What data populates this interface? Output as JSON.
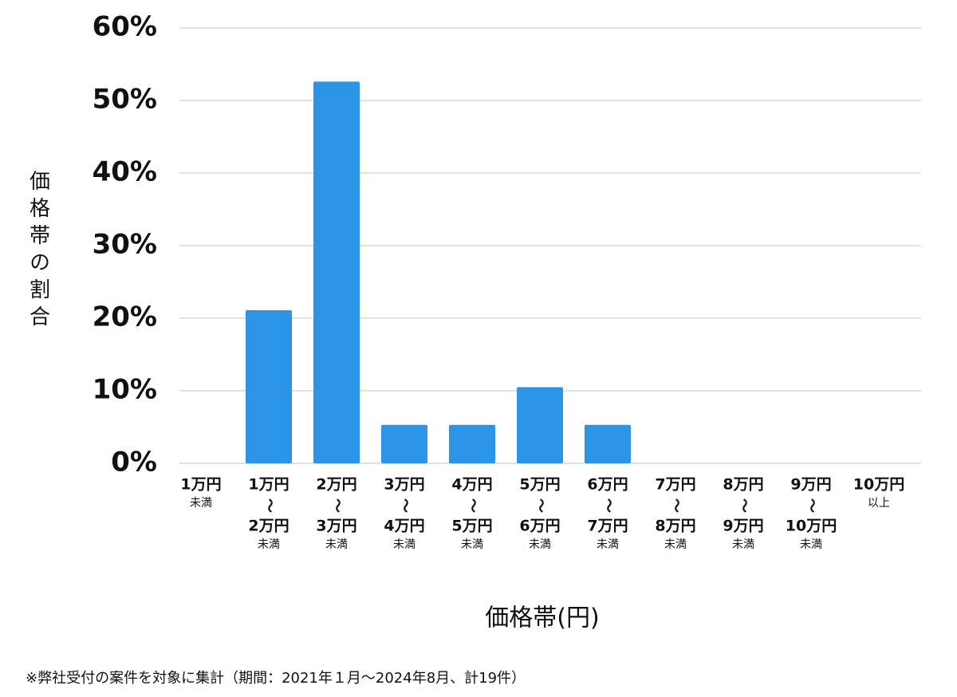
{
  "chart_data": {
    "type": "bar",
    "ylabel": "価格帯の割合",
    "xlabel": "価格帯(円)",
    "note": "※弊社受付の案件を対象に集計（期間：2021年１月〜2024年8月、計19件）",
    "categories": [
      [
        "1万円",
        "未満"
      ],
      [
        "1万円",
        "〜",
        "2万円",
        "未満"
      ],
      [
        "2万円",
        "〜",
        "3万円",
        "未満"
      ],
      [
        "3万円",
        "〜",
        "4万円",
        "未満"
      ],
      [
        "4万円",
        "〜",
        "5万円",
        "未満"
      ],
      [
        "5万円",
        "〜",
        "6万円",
        "未満"
      ],
      [
        "6万円",
        "〜",
        "7万円",
        "未満"
      ],
      [
        "7万円",
        "〜",
        "8万円",
        "未満"
      ],
      [
        "8万円",
        "〜",
        "9万円",
        "未満"
      ],
      [
        "9万円",
        "〜",
        "10万円",
        "未満"
      ],
      [
        "10万円",
        "以上"
      ]
    ],
    "values": [
      0,
      21.1,
      52.6,
      5.3,
      5.3,
      10.5,
      5.3,
      0,
      0,
      0,
      0
    ],
    "color": "#2b94e6",
    "ylim": [
      0,
      60
    ],
    "yticks": [
      {
        "value": 0,
        "label": "0%"
      },
      {
        "value": 10,
        "label": "10%"
      },
      {
        "value": 20,
        "label": "20%"
      },
      {
        "value": 30,
        "label": "30%"
      },
      {
        "value": 40,
        "label": "40%"
      },
      {
        "value": 50,
        "label": "50%"
      },
      {
        "value": 60,
        "label": "60%"
      }
    ],
    "grid": true
  }
}
